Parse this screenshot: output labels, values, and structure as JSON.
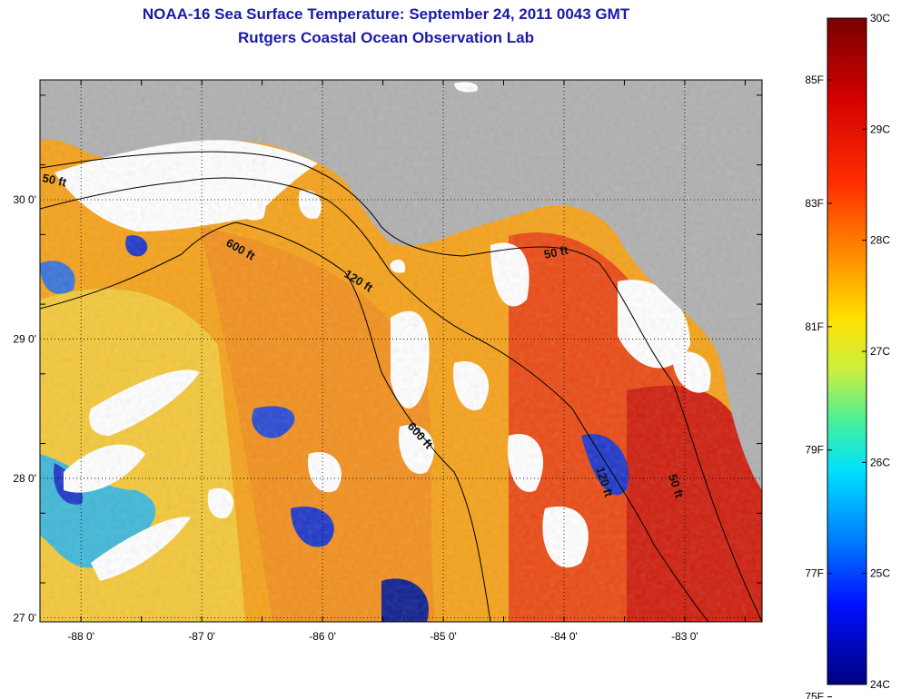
{
  "title": {
    "line1": "NOAA-16 Sea Surface Temperature:  September 24, 2011 0043 GMT",
    "line2": "Rutgers Coastal Ocean Observation Lab"
  },
  "map": {
    "lat_labels": [
      {
        "value": 30,
        "label": "30 0'"
      },
      {
        "value": 29,
        "label": "29 0'"
      },
      {
        "value": 28,
        "label": "28 0'"
      },
      {
        "value": 27,
        "label": "27 0'"
      }
    ],
    "lon_labels": [
      {
        "value": -88,
        "label": "-88 0'"
      },
      {
        "value": -87,
        "label": "-87 0'"
      },
      {
        "value": -86,
        "label": "-86 0'"
      },
      {
        "value": -85,
        "label": "-85 0'"
      },
      {
        "value": -84,
        "label": "-84 0'"
      },
      {
        "value": -83,
        "label": "-83 0'"
      }
    ],
    "lat_range": [
      26.97,
      30.86
    ],
    "lon_range": [
      -88.34,
      -82.36
    ],
    "contour_labels": [
      "50 ft",
      "600 ft",
      "120 ft",
      "50 ft",
      "600 ft",
      "120 ft",
      "50 ft"
    ],
    "colors": {
      "land": "#b0b0b0",
      "cloud": "#ffffff",
      "contour": "#000000"
    }
  },
  "colorbar": {
    "celsius_labels": [
      "30C",
      "29C",
      "28C",
      "27C",
      "26C",
      "25C",
      "24C"
    ],
    "fahrenheit_labels": [
      "85F",
      "83F",
      "81F",
      "79F",
      "77F",
      "75F"
    ],
    "range_c": [
      24,
      30
    ],
    "colormap": [
      "#00008f",
      "#0000ff",
      "#0080ff",
      "#00ffff",
      "#80ff80",
      "#ffff00",
      "#ff8000",
      "#ff0000",
      "#800000"
    ]
  }
}
